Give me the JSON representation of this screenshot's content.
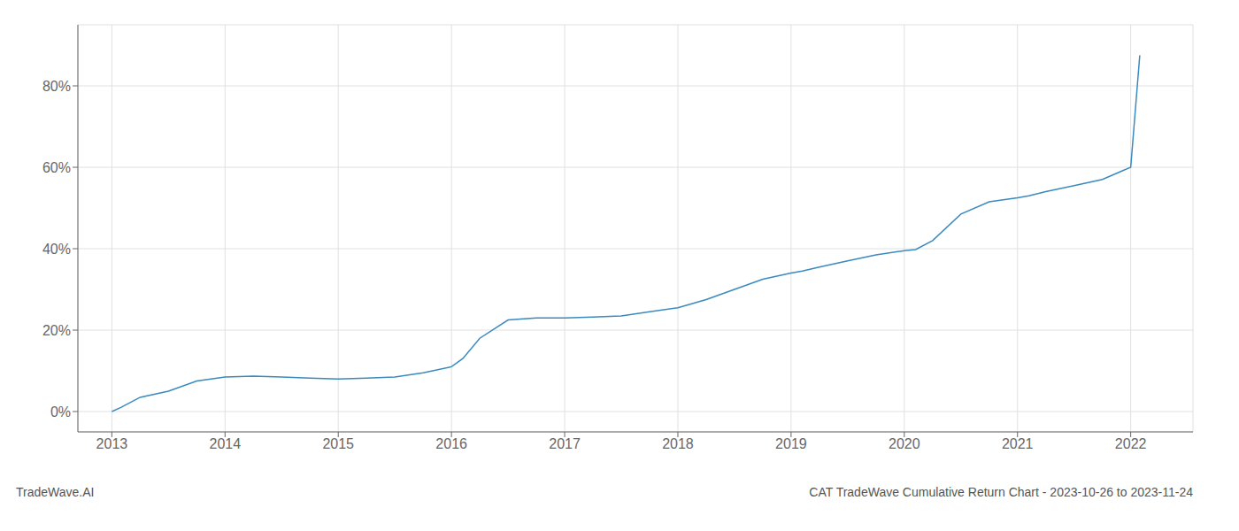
{
  "chart_data": {
    "type": "line",
    "title": "CAT TradeWave Cumulative Return Chart - 2023-10-26 to 2023-11-24",
    "annotations": [
      "TradeWave.AI"
    ],
    "x": [
      2013.0,
      2013.08,
      2013.25,
      2013.5,
      2013.75,
      2014.0,
      2014.25,
      2014.5,
      2014.75,
      2015.0,
      2015.25,
      2015.5,
      2015.75,
      2016.0,
      2016.1,
      2016.25,
      2016.5,
      2016.75,
      2017.0,
      2017.25,
      2017.5,
      2017.75,
      2018.0,
      2018.25,
      2018.5,
      2018.75,
      2019.0,
      2019.1,
      2019.25,
      2019.5,
      2019.75,
      2020.0,
      2020.1,
      2020.25,
      2020.5,
      2020.75,
      2021.0,
      2021.1,
      2021.25,
      2021.5,
      2021.75,
      2022.0,
      2022.08
    ],
    "values": [
      0.0,
      1.0,
      3.5,
      5.0,
      7.5,
      8.5,
      8.7,
      8.5,
      8.2,
      8.0,
      8.2,
      8.5,
      9.5,
      11.0,
      13.0,
      18.0,
      22.5,
      23.0,
      23.0,
      23.2,
      23.5,
      24.5,
      25.5,
      27.5,
      30.0,
      32.5,
      34.0,
      34.5,
      35.5,
      37.0,
      38.5,
      39.5,
      39.8,
      42.0,
      48.5,
      51.5,
      52.5,
      53.0,
      54.0,
      55.5,
      57.0,
      60.0,
      87.5
    ],
    "color": "#3a8abf",
    "xlim": [
      2012.7,
      2022.55
    ],
    "ylim": [
      -5,
      95
    ],
    "xticks": [
      2013,
      2014,
      2015,
      2016,
      2017,
      2018,
      2019,
      2020,
      2021,
      2022
    ],
    "yticks": [
      {
        "value": 0,
        "label": "0%"
      },
      {
        "value": 20,
        "label": "20%"
      },
      {
        "value": 40,
        "label": "40%"
      },
      {
        "value": 60,
        "label": "60%"
      },
      {
        "value": 80,
        "label": "80%"
      }
    ],
    "grid": true
  }
}
